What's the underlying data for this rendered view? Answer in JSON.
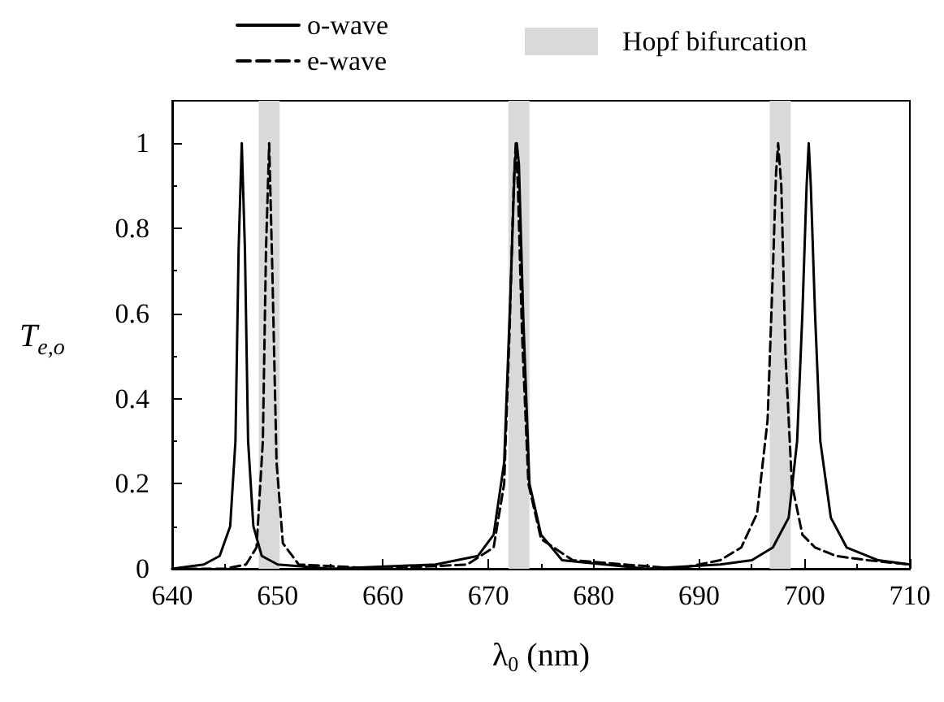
{
  "chart_data": {
    "type": "line",
    "xlabel": "λ$_{0}$ (nm)",
    "ylabel": "T$_{e,o}$",
    "xlim": [
      640,
      710
    ],
    "xticks": [
      640,
      650,
      660,
      670,
      680,
      690,
      700,
      710
    ],
    "ylim": [
      0,
      1.1
    ],
    "yticks": [
      0,
      0.2,
      0.4,
      0.6,
      0.8,
      1
    ],
    "grid": false,
    "legend": "top",
    "marker": "none",
    "series": [
      {
        "name": "o-wave",
        "color": "#000000",
        "line_style": "solid",
        "x": [
          640,
          643,
          644.5,
          645.5,
          646,
          646.3,
          646.6,
          646.9,
          647.2,
          647.7,
          648.5,
          650,
          655,
          665,
          669,
          670.5,
          671.5,
          672.1,
          672.5,
          672.7,
          672.9,
          673.3,
          673.9,
          675,
          677,
          685,
          692,
          695,
          697,
          698.5,
          699.3,
          699.8,
          700.2,
          700.4,
          700.6,
          701,
          701.5,
          702.5,
          704,
          707,
          710
        ],
        "values": [
          0,
          0.01,
          0.03,
          0.1,
          0.3,
          0.75,
          1,
          0.75,
          0.3,
          0.1,
          0.03,
          0.01,
          0,
          0.01,
          0.03,
          0.08,
          0.25,
          0.65,
          0.95,
          1,
          0.95,
          0.6,
          0.2,
          0.08,
          0.02,
          0,
          0.01,
          0.02,
          0.05,
          0.12,
          0.3,
          0.6,
          0.9,
          1,
          0.9,
          0.6,
          0.3,
          0.12,
          0.05,
          0.02,
          0.01
        ]
      },
      {
        "name": "e-wave",
        "color": "#000000",
        "line_style": "dashed",
        "x": [
          640,
          645,
          647,
          648,
          648.6,
          648.9,
          649.2,
          649.5,
          649.9,
          650.5,
          652,
          660,
          668,
          670.5,
          671.5,
          672,
          672.4,
          672.6,
          672.8,
          673.2,
          673.8,
          675,
          678,
          688,
          692,
          694,
          695.5,
          696.5,
          697,
          697.3,
          697.5,
          697.8,
          698.2,
          698.8,
          699.8,
          701,
          703,
          706,
          710
        ],
        "values": [
          0,
          0,
          0.01,
          0.05,
          0.3,
          0.75,
          1,
          0.7,
          0.25,
          0.06,
          0.01,
          0,
          0.01,
          0.05,
          0.2,
          0.55,
          0.9,
          1,
          0.9,
          0.55,
          0.2,
          0.07,
          0.02,
          0,
          0.02,
          0.05,
          0.13,
          0.35,
          0.7,
          0.93,
          1,
          0.9,
          0.5,
          0.2,
          0.08,
          0.05,
          0.03,
          0.02,
          0.01
        ]
      }
    ],
    "bands": [
      {
        "axis": "x",
        "from": 648.2,
        "to": 650.2,
        "label": "Hopf bifurcation",
        "color": "#d9d9d9"
      },
      {
        "axis": "x",
        "from": 671.9,
        "to": 673.9,
        "color": "#d9d9d9"
      },
      {
        "axis": "x",
        "from": 696.7,
        "to": 698.7,
        "color": "#d9d9d9"
      }
    ]
  }
}
